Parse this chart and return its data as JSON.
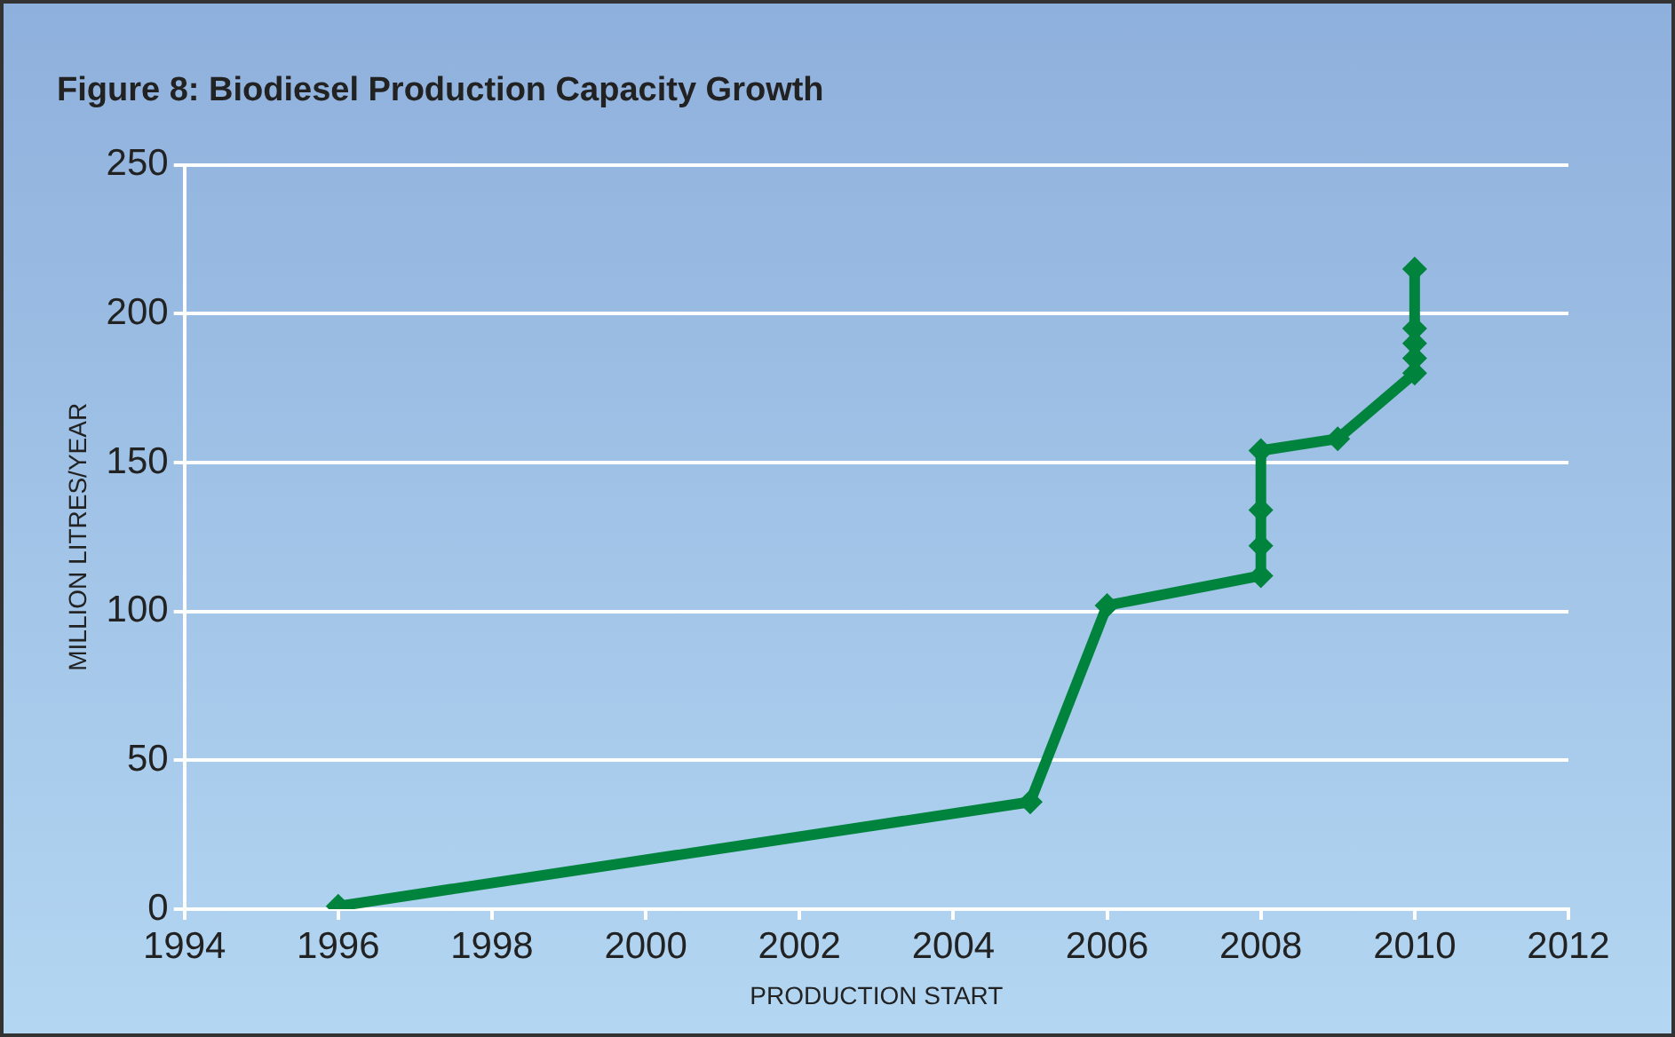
{
  "chart_data": {
    "type": "line",
    "title": "Figure 8: Biodiesel Production Capacity Growth",
    "xlabel": "PRODUCTION START",
    "ylabel": "MILLION LITRES/YEAR",
    "series": [
      {
        "color": "#00843d",
        "x": [
          1996,
          2005,
          2006,
          2008,
          2008,
          2008,
          2008,
          2009,
          2010,
          2010,
          2010,
          2010,
          2010
        ],
        "values": [
          1,
          36,
          102,
          112,
          122,
          134,
          154,
          158,
          180,
          185,
          190,
          195,
          215
        ]
      }
    ],
    "xlim": [
      1994,
      2012
    ],
    "xticks": [
      1994,
      1996,
      1998,
      2000,
      2002,
      2004,
      2006,
      2008,
      2010,
      2012
    ],
    "ylim": [
      0,
      250
    ],
    "yticks": [
      0,
      50,
      100,
      150,
      200,
      250
    ],
    "grid": "y",
    "legend": false,
    "marker": "diamond",
    "line_style": "solid"
  }
}
